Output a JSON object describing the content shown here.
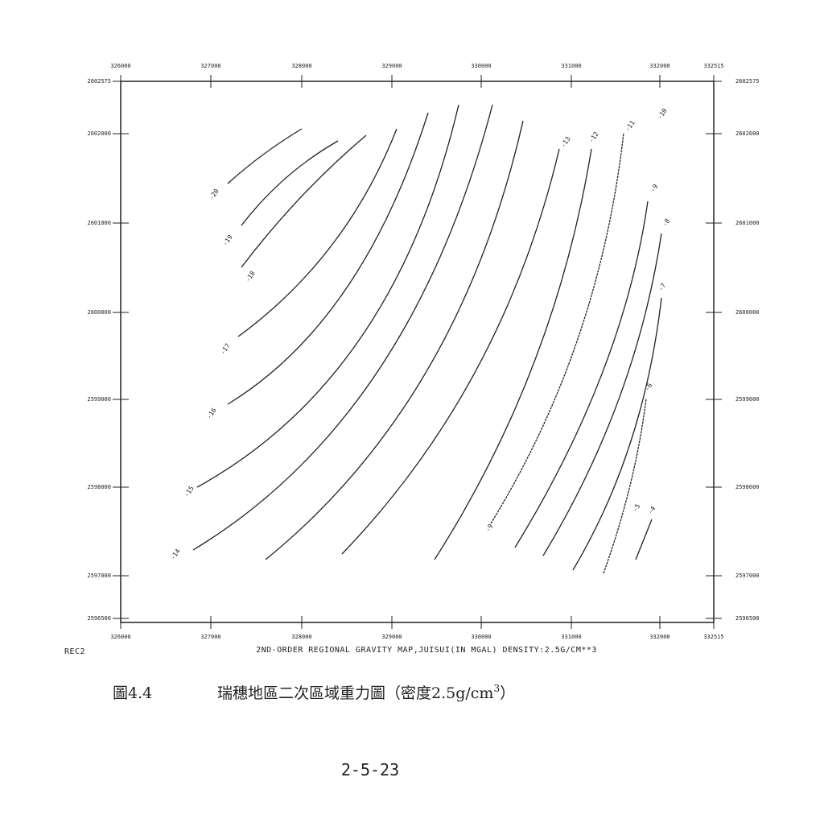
{
  "map": {
    "top_ticks": [
      "326000",
      "327000",
      "328000",
      "329000",
      "330000",
      "331000",
      "332000",
      "332515"
    ],
    "bottom_ticks": [
      "326000",
      "327000",
      "328000",
      "329000",
      "330000",
      "331000",
      "332000",
      "332515"
    ],
    "left_ticks": [
      "2602575",
      "2602000",
      "2601000",
      "2600000",
      "2599000",
      "2598000",
      "2597000",
      "2596500"
    ],
    "right_ticks": [
      "2602575",
      "2602000",
      "2601000",
      "2600000",
      "2599000",
      "2598000",
      "2597000",
      "2596500"
    ],
    "contour_labels": [
      "-20",
      "-19",
      "-18",
      "-17",
      "-16",
      "-15",
      "-14",
      "-13",
      "-12",
      "-11",
      "-10",
      "-9",
      "-8",
      "-7",
      "-6",
      "-5",
      "-4",
      "-9"
    ],
    "code": "REC2",
    "title": "2ND-ORDER REGIONAL GRAVITY MAP,JUISUI(IN MGAL) DENSITY:2.5G/CM**3"
  },
  "caption": {
    "number": "圖4.4",
    "title": "瑞穗地區二次區域重力圖（密度2.5g/cm",
    "superscript": "3",
    "title_end": "）"
  },
  "page_number": "2-5-23"
}
